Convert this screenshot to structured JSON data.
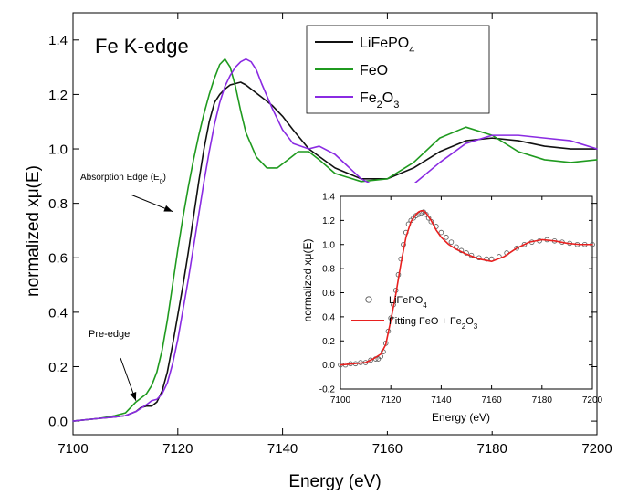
{
  "chart_data": [
    {
      "id": "main",
      "type": "line",
      "title": "Fe K-edge",
      "xlabel": "Energy (eV)",
      "ylabel": "normalized xμ(E)",
      "xlim": [
        7100,
        7200
      ],
      "ylim": [
        -0.05,
        1.5
      ],
      "xticks": [
        7100,
        7120,
        7140,
        7160,
        7180,
        7200
      ],
      "yticks": [
        0.0,
        0.2,
        0.4,
        0.6,
        0.8,
        1.0,
        1.2,
        1.4
      ],
      "grid": false,
      "legend": "top-right",
      "series": [
        {
          "name": "LiFePO4",
          "name_main": "LiFePO",
          "name_sub": "4",
          "color": "#111111",
          "x": [
            7100,
            7105,
            7108,
            7110,
            7112,
            7113,
            7114,
            7115,
            7116,
            7117,
            7118,
            7119,
            7120,
            7121,
            7122,
            7123,
            7124,
            7125,
            7126,
            7127,
            7128,
            7129,
            7130,
            7131,
            7132,
            7133,
            7134,
            7136,
            7138,
            7140,
            7142,
            7145,
            7150,
            7155,
            7160,
            7165,
            7170,
            7175,
            7180,
            7185,
            7190,
            7195,
            7200
          ],
          "y": [
            0.0,
            0.01,
            0.015,
            0.02,
            0.035,
            0.05,
            0.055,
            0.055,
            0.07,
            0.11,
            0.18,
            0.28,
            0.39,
            0.5,
            0.62,
            0.75,
            0.88,
            1.0,
            1.1,
            1.17,
            1.2,
            1.22,
            1.235,
            1.24,
            1.245,
            1.235,
            1.22,
            1.19,
            1.16,
            1.12,
            1.07,
            1.0,
            0.93,
            0.89,
            0.89,
            0.93,
            0.99,
            1.03,
            1.04,
            1.03,
            1.01,
            1.0,
            1.0
          ]
        },
        {
          "name": "FeO",
          "name_main": "FeO",
          "name_sub": "",
          "color": "#1f9a1f",
          "x": [
            7100,
            7105,
            7108,
            7110,
            7111,
            7112,
            7113,
            7114,
            7115,
            7116,
            7117,
            7118,
            7119,
            7120,
            7121,
            7122,
            7123,
            7124,
            7125,
            7126,
            7127,
            7128,
            7129,
            7130,
            7131,
            7132,
            7133,
            7135,
            7137,
            7139,
            7141,
            7143,
            7145,
            7147,
            7150,
            7155,
            7160,
            7165,
            7170,
            7175,
            7180,
            7185,
            7190,
            7195,
            7200
          ],
          "y": [
            0.0,
            0.01,
            0.02,
            0.03,
            0.05,
            0.07,
            0.085,
            0.1,
            0.13,
            0.18,
            0.26,
            0.37,
            0.5,
            0.63,
            0.75,
            0.86,
            0.96,
            1.05,
            1.13,
            1.2,
            1.26,
            1.31,
            1.33,
            1.3,
            1.23,
            1.14,
            1.06,
            0.97,
            0.93,
            0.93,
            0.96,
            0.99,
            0.99,
            0.96,
            0.91,
            0.88,
            0.89,
            0.95,
            1.04,
            1.08,
            1.05,
            0.99,
            0.96,
            0.95,
            0.96
          ]
        },
        {
          "name": "Fe2O3",
          "name_main": "Fe",
          "name_sub": "2",
          "name_main2": "O",
          "name_sub2": "3",
          "color": "#8a2be2",
          "x": [
            7100,
            7105,
            7108,
            7110,
            7112,
            7114,
            7115,
            7116,
            7117,
            7118,
            7119,
            7120,
            7121,
            7122,
            7123,
            7124,
            7125,
            7126,
            7127,
            7128,
            7129,
            7130,
            7131,
            7132,
            7133,
            7134,
            7135,
            7136,
            7138,
            7140,
            7142,
            7145,
            7147,
            7150,
            7155,
            7160,
            7165,
            7170,
            7175,
            7180,
            7185,
            7190,
            7195,
            7200
          ],
          "y": [
            0.0,
            0.01,
            0.015,
            0.02,
            0.035,
            0.06,
            0.075,
            0.08,
            0.1,
            0.14,
            0.21,
            0.3,
            0.41,
            0.52,
            0.64,
            0.76,
            0.88,
            0.99,
            1.09,
            1.17,
            1.23,
            1.27,
            1.3,
            1.32,
            1.33,
            1.32,
            1.29,
            1.24,
            1.15,
            1.07,
            1.02,
            1.0,
            1.01,
            0.98,
            0.89,
            0.84,
            0.87,
            0.95,
            1.02,
            1.05,
            1.05,
            1.04,
            1.03,
            1.0
          ]
        }
      ],
      "annotations": [
        {
          "id": "edge",
          "text_main": "Absorption Edge (E",
          "text_sub": "0",
          "text_end": ")",
          "arrow_to": [
            7119,
            0.77
          ]
        },
        {
          "id": "preedge",
          "text_main": "Pre-edge",
          "arrow_to": [
            7112,
            0.075
          ]
        }
      ]
    },
    {
      "id": "inset",
      "type": "scatter",
      "xlabel": "Energy (eV)",
      "ylabel": "normalized xμ(E)",
      "xlim": [
        7100,
        7200
      ],
      "ylim": [
        -0.2,
        1.4
      ],
      "xticks": [
        7100,
        7120,
        7140,
        7160,
        7180,
        7200
      ],
      "yticks": [
        -0.2,
        0.0,
        0.2,
        0.4,
        0.6,
        0.8,
        1.0,
        1.2,
        1.4
      ],
      "tick_labels_y": [
        "-0.2",
        "0.0",
        "0.2",
        "0.4",
        "0.6",
        "0.8",
        "1.0",
        "1.2",
        "1.4"
      ],
      "grid": false,
      "legend": "bottom-left",
      "series": [
        {
          "name": "LiFePO4",
          "name_main": "LiFePO",
          "name_sub": "4",
          "color": "#555555",
          "style": "markers",
          "x": [
            7100,
            7102,
            7104,
            7106,
            7108,
            7110,
            7112,
            7114,
            7115,
            7116,
            7117,
            7118,
            7119,
            7120,
            7121,
            7122,
            7123,
            7124,
            7125,
            7126,
            7127,
            7128,
            7129,
            7130,
            7131,
            7132,
            7133,
            7134,
            7135,
            7136,
            7138,
            7140,
            7142,
            7144,
            7146,
            7148,
            7150,
            7152,
            7155,
            7158,
            7160,
            7163,
            7166,
            7170,
            7173,
            7176,
            7179,
            7182,
            7185,
            7188,
            7191,
            7194,
            7197,
            7200
          ],
          "y": [
            0.0,
            0.0,
            0.01,
            0.01,
            0.02,
            0.02,
            0.04,
            0.05,
            0.05,
            0.07,
            0.11,
            0.18,
            0.28,
            0.39,
            0.5,
            0.62,
            0.75,
            0.88,
            1.0,
            1.1,
            1.17,
            1.2,
            1.22,
            1.24,
            1.25,
            1.26,
            1.27,
            1.25,
            1.22,
            1.19,
            1.15,
            1.1,
            1.06,
            1.02,
            0.98,
            0.95,
            0.93,
            0.91,
            0.89,
            0.88,
            0.88,
            0.9,
            0.93,
            0.97,
            1.0,
            1.02,
            1.03,
            1.04,
            1.03,
            1.02,
            1.01,
            1.0,
            1.0,
            1.0
          ]
        },
        {
          "name": "Fitting FeO + Fe2O3",
          "name_main": "Fitting FeO + Fe",
          "name_sub": "2",
          "name_main2": "O",
          "name_sub2": "3",
          "color": "#e8201f",
          "style": "line",
          "x": [
            7100,
            7105,
            7110,
            7113,
            7116,
            7118,
            7120,
            7122,
            7124,
            7126,
            7128,
            7130,
            7131,
            7132,
            7133,
            7134,
            7136,
            7138,
            7140,
            7143,
            7146,
            7150,
            7155,
            7160,
            7165,
            7170,
            7175,
            7180,
            7185,
            7190,
            7195,
            7200
          ],
          "y": [
            0.0,
            0.01,
            0.02,
            0.05,
            0.09,
            0.17,
            0.37,
            0.59,
            0.84,
            1.06,
            1.19,
            1.25,
            1.27,
            1.28,
            1.28,
            1.26,
            1.2,
            1.12,
            1.06,
            1.0,
            0.96,
            0.92,
            0.88,
            0.86,
            0.9,
            0.97,
            1.02,
            1.04,
            1.03,
            1.01,
            1.0,
            1.0
          ]
        }
      ]
    }
  ]
}
